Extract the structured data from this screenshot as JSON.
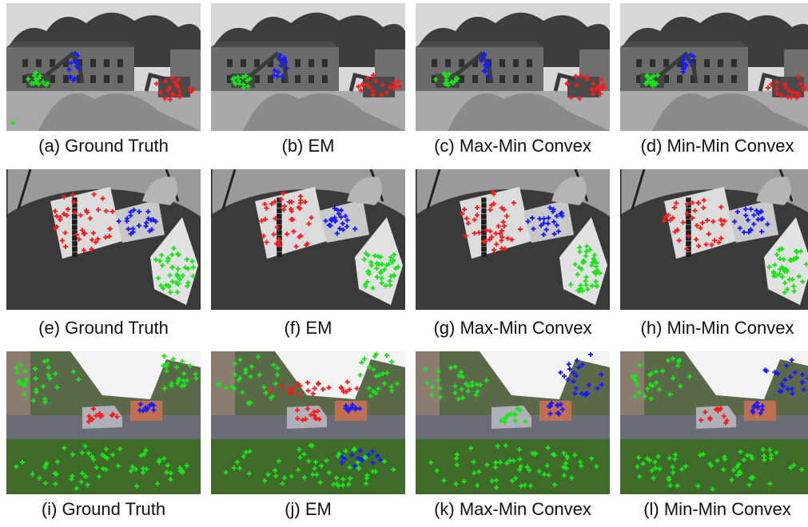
{
  "figure": {
    "rows": [
      {
        "scene": "construction",
        "panels": [
          {
            "caption": "(a) Ground Truth"
          },
          {
            "caption": "(b) EM"
          },
          {
            "caption": "(c) Max-Min Convex"
          },
          {
            "caption": "(d) Min-Min Convex"
          }
        ]
      },
      {
        "scene": "toy-cars",
        "panels": [
          {
            "caption": "(e) Ground Truth"
          },
          {
            "caption": "(f) EM"
          },
          {
            "caption": "(g) Max-Min Convex"
          },
          {
            "caption": "(h) Min-Min Convex"
          }
        ]
      },
      {
        "scene": "street",
        "panels": [
          {
            "caption": "(i) Ground Truth"
          },
          {
            "caption": "(j) EM"
          },
          {
            "caption": "(k) Max-Min Convex"
          },
          {
            "caption": "(l) Min-Min Convex"
          }
        ]
      }
    ],
    "marker_colors": {
      "red": "#ff1a1a",
      "green": "#19e619",
      "blue": "#1a1aff"
    }
  }
}
